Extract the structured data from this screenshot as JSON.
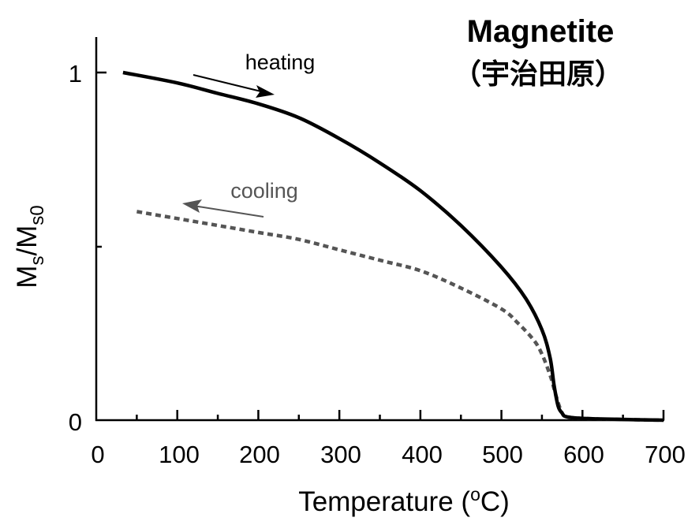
{
  "title": {
    "main": "Magnetite",
    "sub": "（宇治田原）"
  },
  "axes": {
    "xlabel_prefix": "Temperature (",
    "xlabel_sup": "o",
    "xlabel_suffix": "C)",
    "ylabel_main": "M",
    "ylabel_sub1": "s",
    "ylabel_slash": "/M",
    "ylabel_sub2": "s0",
    "xticks": [
      "0",
      "100",
      "200",
      "300",
      "400",
      "500",
      "600",
      "700"
    ],
    "yticks": [
      "0",
      "1"
    ]
  },
  "annotations": {
    "heating": "heating",
    "cooling": "cooling"
  },
  "colors": {
    "heating": "#000000",
    "cooling": "#555555",
    "axis": "#000000"
  },
  "chart_data": {
    "type": "line",
    "title": "Magnetite （宇治田原）",
    "xlabel": "Temperature (°C)",
    "ylabel": "Ms/Ms0",
    "xlim": [
      0,
      700
    ],
    "ylim": [
      0,
      1.1
    ],
    "xticks": [
      0,
      100,
      200,
      300,
      400,
      500,
      600,
      700
    ],
    "yticks_labeled": [
      0,
      1
    ],
    "ytick_minor": [
      0.5
    ],
    "grid": false,
    "legend": "inline annotations with arrows (heating → right, cooling ← left)",
    "series": [
      {
        "name": "heating",
        "style": "solid",
        "color": "#000000",
        "x": [
          33,
          100,
          150,
          200,
          250,
          300,
          350,
          400,
          450,
          500,
          530,
          550,
          560,
          565,
          570,
          575,
          580,
          600,
          650,
          700
        ],
        "y": [
          1.0,
          0.97,
          0.94,
          0.91,
          0.87,
          0.81,
          0.74,
          0.66,
          0.56,
          0.44,
          0.35,
          0.26,
          0.18,
          0.1,
          0.04,
          0.02,
          0.01,
          0.005,
          0.002,
          0.0
        ]
      },
      {
        "name": "cooling",
        "style": "dashed",
        "color": "#555555",
        "x": [
          50,
          100,
          150,
          200,
          250,
          300,
          350,
          400,
          450,
          500,
          520,
          540,
          550,
          560,
          565,
          570,
          575,
          580,
          600,
          650,
          700
        ],
        "y": [
          0.6,
          0.58,
          0.56,
          0.54,
          0.52,
          0.49,
          0.46,
          0.43,
          0.38,
          0.32,
          0.28,
          0.23,
          0.19,
          0.13,
          0.09,
          0.05,
          0.02,
          0.01,
          0.005,
          0.002,
          0.0
        ]
      }
    ]
  }
}
